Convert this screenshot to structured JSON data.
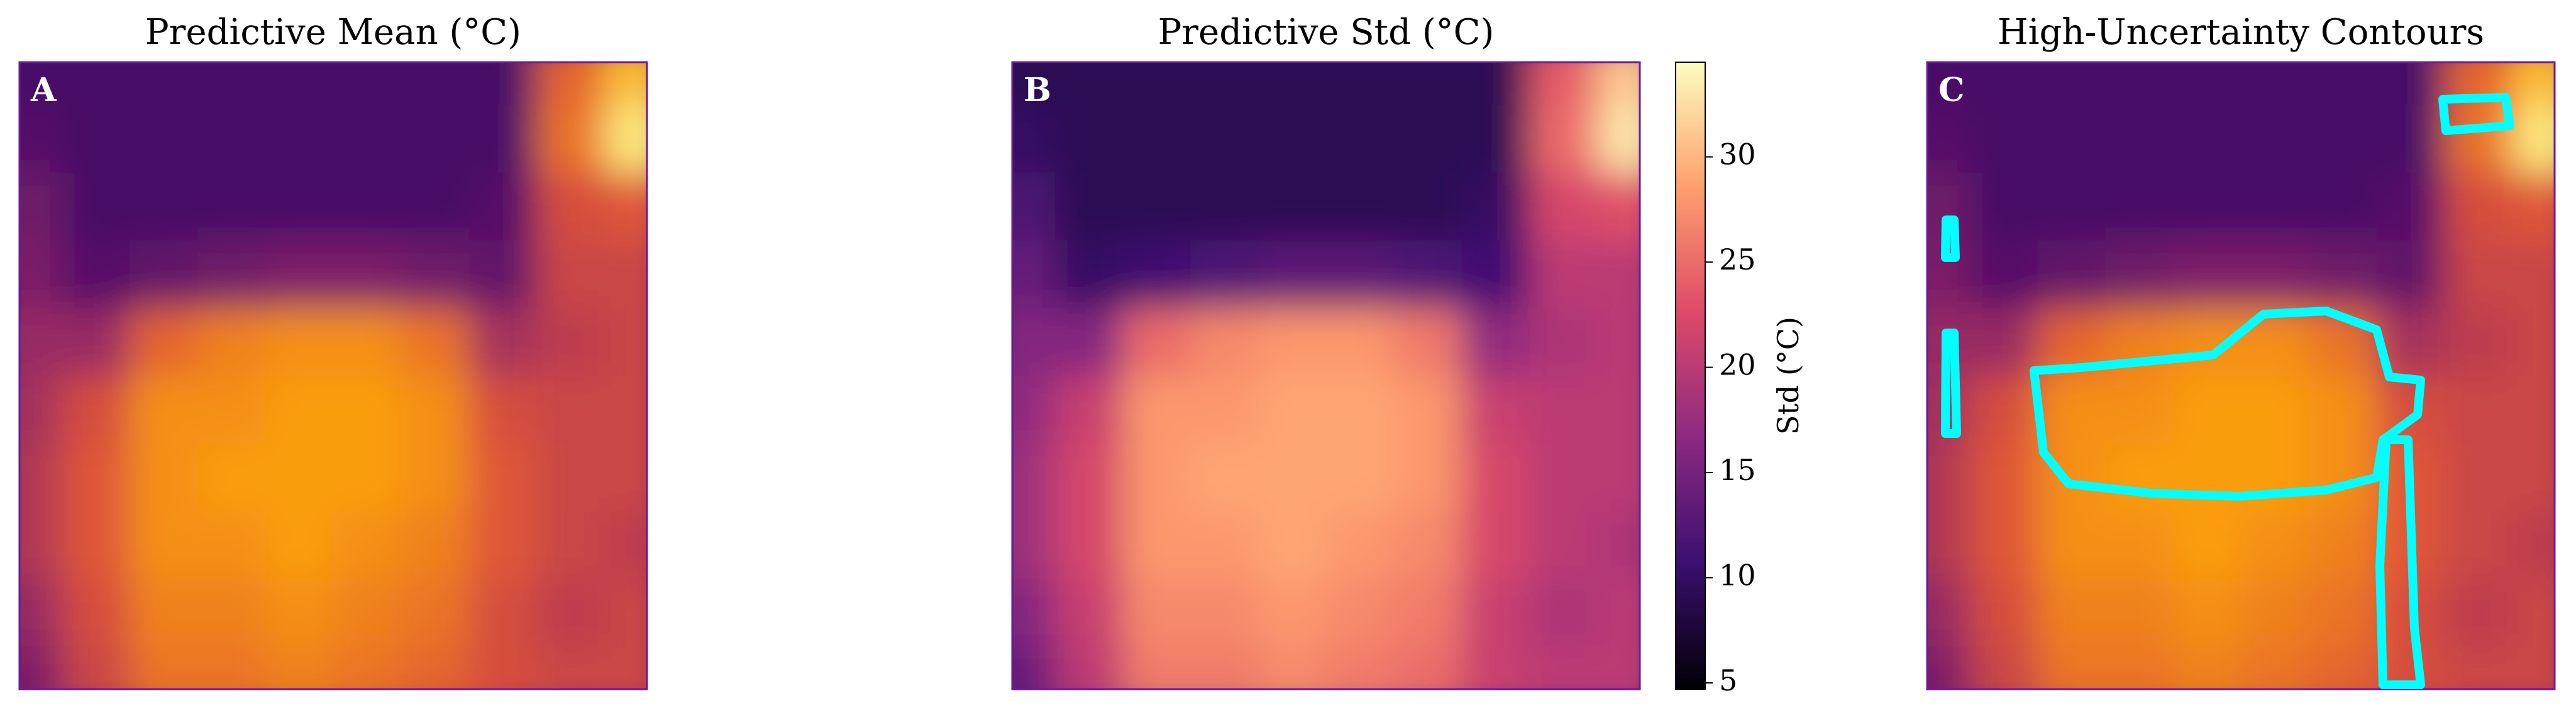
{
  "chart_data": [
    {
      "type": "heatmap",
      "title": "Predictive Mean (°C)",
      "panel_label": "A",
      "colormap": [
        "#000004",
        "#420a68",
        "#932667",
        "#dd513a",
        "#fca50a",
        "#fcffa4"
      ],
      "clim": [
        4.7,
        34.5
      ],
      "z": [
        [
          11,
          11,
          11,
          11,
          11,
          11,
          11,
          11,
          24,
          30
        ],
        [
          12,
          11,
          11,
          11,
          11,
          11,
          11,
          11,
          25,
          33
        ],
        [
          14,
          11,
          11,
          11,
          11,
          11,
          11,
          12,
          22,
          23
        ],
        [
          15,
          12,
          13,
          14,
          15,
          15,
          14,
          13,
          21,
          21
        ],
        [
          17,
          17,
          24,
          26,
          27,
          27,
          25,
          18,
          20,
          21
        ],
        [
          18,
          22,
          27,
          27,
          28,
          28,
          27,
          22,
          21,
          21
        ],
        [
          19,
          23,
          27,
          28,
          28,
          28,
          27,
          23,
          21,
          21
        ],
        [
          19,
          23,
          27,
          27,
          28,
          27,
          26,
          23,
          21,
          20
        ],
        [
          17,
          22,
          26,
          26,
          27,
          26,
          25,
          22,
          20,
          21
        ],
        [
          15,
          21,
          25,
          25,
          26,
          25,
          24,
          22,
          21,
          21
        ]
      ]
    },
    {
      "type": "heatmap",
      "title": "Predictive Std (°C)",
      "panel_label": "B",
      "colormap": [
        "#000004",
        "#3b0f70",
        "#8c2981",
        "#de4968",
        "#fe9f6d",
        "#fcfdbf"
      ],
      "clim": [
        4.7,
        34.5
      ],
      "z": [
        [
          9,
          9,
          9,
          9,
          9,
          9,
          9,
          9,
          24,
          31
        ],
        [
          10,
          9,
          9,
          9,
          9,
          9,
          9,
          9,
          25,
          33
        ],
        [
          12,
          9,
          9,
          9,
          9,
          9,
          9,
          10,
          22,
          23
        ],
        [
          14,
          10,
          11,
          12,
          13,
          13,
          12,
          11,
          20,
          20
        ],
        [
          16,
          16,
          25,
          27,
          28,
          28,
          26,
          17,
          19,
          20
        ],
        [
          17,
          21,
          28,
          28,
          29,
          29,
          28,
          21,
          20,
          20
        ],
        [
          18,
          22,
          28,
          29,
          29,
          29,
          28,
          22,
          20,
          20
        ],
        [
          18,
          22,
          28,
          28,
          29,
          28,
          27,
          22,
          20,
          19
        ],
        [
          16,
          21,
          27,
          27,
          28,
          27,
          26,
          21,
          19,
          20
        ],
        [
          14,
          20,
          26,
          26,
          27,
          26,
          25,
          21,
          20,
          20
        ]
      ],
      "colorbar": {
        "label": "Std (°C)",
        "ticks": [
          5,
          10,
          15,
          20,
          25,
          30
        ]
      }
    },
    {
      "type": "heatmap",
      "title": "High-Uncertainty Contours",
      "panel_label": "C",
      "colormap": [
        "#000004",
        "#420a68",
        "#932667",
        "#dd513a",
        "#fca50a",
        "#fcffa4"
      ],
      "clim": [
        4.7,
        34.5
      ],
      "z": [
        [
          11,
          11,
          11,
          11,
          11,
          11,
          11,
          11,
          24,
          30
        ],
        [
          12,
          11,
          11,
          11,
          11,
          11,
          11,
          11,
          25,
          33
        ],
        [
          14,
          11,
          11,
          11,
          11,
          11,
          11,
          12,
          22,
          23
        ],
        [
          15,
          12,
          13,
          14,
          15,
          15,
          14,
          13,
          21,
          21
        ],
        [
          17,
          17,
          24,
          26,
          27,
          27,
          25,
          18,
          20,
          21
        ],
        [
          18,
          22,
          27,
          27,
          28,
          28,
          27,
          22,
          21,
          21
        ],
        [
          19,
          23,
          27,
          28,
          28,
          28,
          27,
          23,
          21,
          21
        ],
        [
          19,
          23,
          27,
          27,
          28,
          27,
          26,
          23,
          21,
          20
        ],
        [
          17,
          22,
          26,
          26,
          27,
          26,
          25,
          22,
          20,
          21
        ],
        [
          15,
          21,
          25,
          25,
          26,
          25,
          24,
          22,
          21,
          21
        ]
      ]
    }
  ]
}
